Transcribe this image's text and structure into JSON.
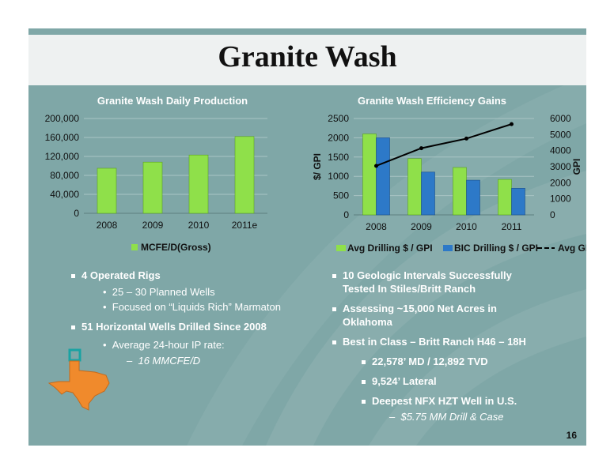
{
  "title": "Granite Wash",
  "page_number": "16",
  "chart_data": [
    {
      "type": "bar",
      "title": "Granite Wash Daily Production",
      "categories": [
        "2008",
        "2009",
        "2010",
        "2011e"
      ],
      "series": [
        {
          "name": "MCFE/D(Gross)",
          "values": [
            95000,
            108000,
            123000,
            162000
          ]
        }
      ],
      "ylim": [
        0,
        200000
      ],
      "ytick_labels": [
        "0",
        "40,000",
        "80,000",
        "120,000",
        "160,000",
        "200,000"
      ],
      "legend": "bottom",
      "colors": {
        "bar": "#8fe04a"
      }
    },
    {
      "type": "bar",
      "title": "Granite Wash Efficiency Gains",
      "categories": [
        "2008",
        "2009",
        "2010",
        "2011"
      ],
      "series": [
        {
          "name": "Avg Drilling $ / GPI",
          "values": [
            2100,
            1460,
            1230,
            920
          ],
          "axis": "left"
        },
        {
          "name": "BIC Drilling $ / GPI",
          "values": [
            2000,
            1110,
            900,
            690
          ],
          "axis": "left"
        },
        {
          "name": "Avg GPI",
          "values": [
            3050,
            4150,
            4750,
            5650
          ],
          "axis": "right",
          "type": "line"
        }
      ],
      "ylabel": "$/ GPI",
      "y2label": "GPI",
      "ylim": [
        0,
        2500
      ],
      "y2lim": [
        0,
        6000
      ],
      "ytick_labels": [
        "0",
        "500",
        "1000",
        "1500",
        "2000",
        "2500"
      ],
      "y2tick_labels": [
        "0",
        "1000",
        "2000",
        "3000",
        "4000",
        "5000",
        "6000"
      ],
      "legend": "bottom",
      "colors": {
        "avg_drilling": "#8fe04a",
        "bic_drilling": "#2d79c8",
        "avg_gpi": "#000000"
      }
    }
  ],
  "bullets_left": {
    "b1": "4 Operated Rigs",
    "b1_1": "25 – 30 Planned Wells",
    "b1_2": "Focused on “Liquids Rich” Marmaton",
    "b2": "51 Horizontal Wells Drilled Since 2008",
    "b2_1": "Average 24-hour IP rate:",
    "b2_1_1": "16 MMCFE/D"
  },
  "bullets_right": {
    "b1_line1": "10 Geologic Intervals Successfully",
    "b1_line2": "Tested In Stiles/Britt Ranch",
    "b2_line1": "Assessing ~15,000 Net Acres in",
    "b2_line2": "Oklahoma",
    "b3": "Best in Class – Britt Ranch H46 – 18H",
    "b3_1": "22,578’ MD / 12,892 TVD",
    "b3_2": "9,524’ Lateral",
    "b3_3": "Deepest NFX HZT Well in U.S.",
    "b3_3_1": "$5.75 MM Drill & Case"
  },
  "colors": {
    "slide_bg": "#7fa7a7",
    "texas": "#f08a2c"
  }
}
